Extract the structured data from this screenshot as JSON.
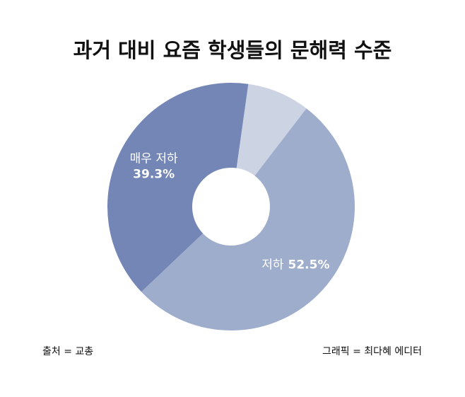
{
  "chart_data": {
    "type": "donut",
    "title": "과거 대비 요즘 학생들의 문해력 수준",
    "categories": [
      null,
      "저하",
      "매우 저하"
    ],
    "values": [
      8.2,
      52.5,
      39.3
    ],
    "value_labels": [
      null,
      "52.5%",
      "39.3%"
    ],
    "colors": [
      "#ccd3e3",
      "#9eadcb",
      "#7486b5"
    ],
    "source": "출처 = 교총",
    "credit": "그래픽 = 최다혜 에디터"
  }
}
